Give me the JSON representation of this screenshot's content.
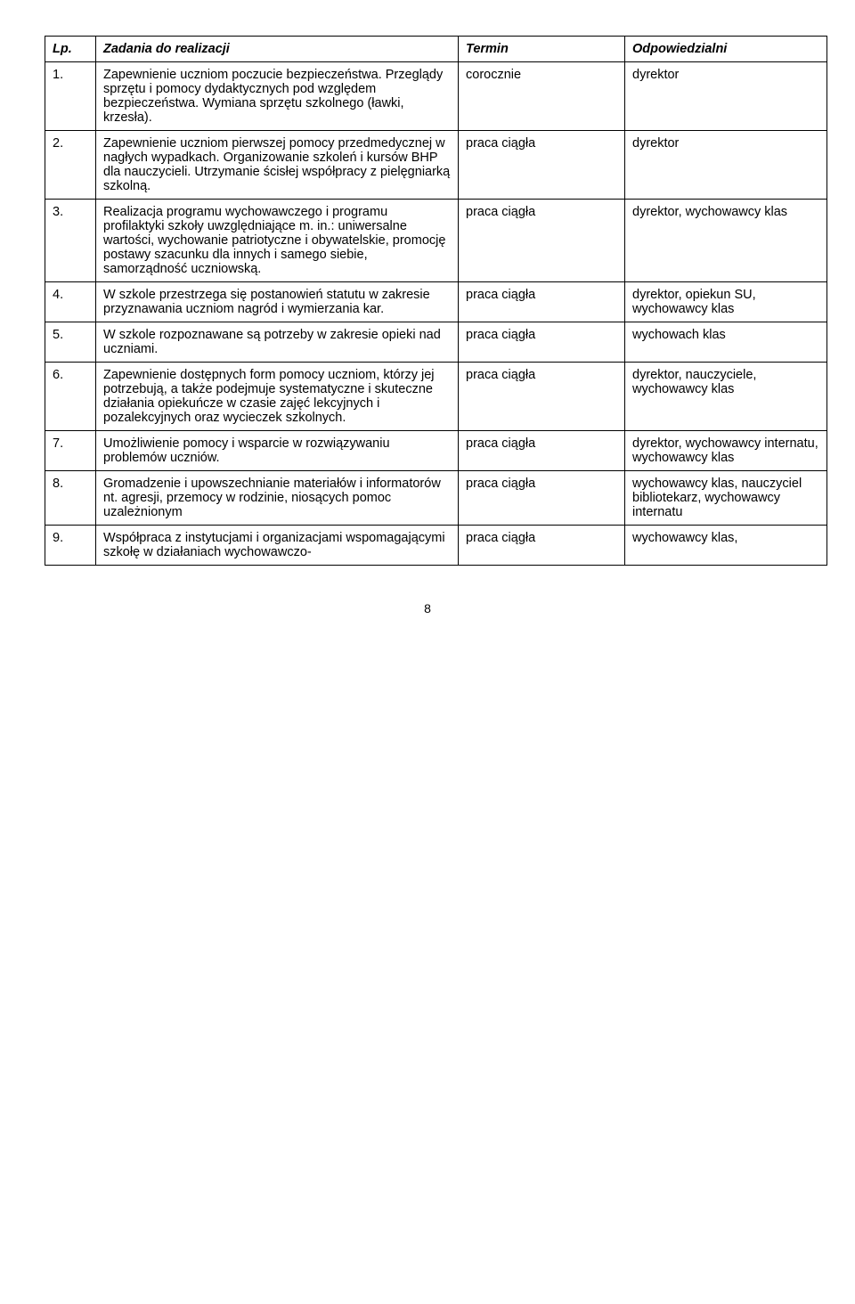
{
  "headers": {
    "lp": "Lp.",
    "task": "Zadania do realizacji",
    "term": "Termin",
    "resp": "Odpowiedzialni"
  },
  "rows": [
    {
      "lp": "1.",
      "task": "Zapewnienie uczniom poczucie bezpieczeństwa. Przeglądy sprzętu i pomocy dydaktycznych pod względem bezpieczeństwa. Wymiana sprzętu szkolnego (ławki, krzesła).",
      "term": "corocznie",
      "resp": "dyrektor"
    },
    {
      "lp": "2.",
      "task": "Zapewnienie uczniom pierwszej pomocy przedmedycznej w nagłych wypadkach. Organizowanie szkoleń i kursów BHP dla nauczycieli. Utrzymanie ścisłej współpracy z pielęgniarką szkolną.",
      "term": "praca ciągła",
      "resp": "dyrektor"
    },
    {
      "lp": "3.",
      "task": "Realizacja programu wychowawczego i programu profilaktyki szkoły uwzględniające m. in.: uniwersalne wartości, wychowanie patriotyczne i obywatelskie, promocję postawy szacunku dla innych i samego siebie, samorządność uczniowską.",
      "term": "praca ciągła",
      "resp": "dyrektor, wychowawcy klas"
    },
    {
      "lp": "4.",
      "task": "W szkole przestrzega się postanowień statutu w zakresie przyznawania uczniom nagród i wymierzania kar.",
      "term": "praca ciągła",
      "resp": "dyrektor, opiekun SU, wychowawcy klas"
    },
    {
      "lp": "5.",
      "task": "W szkole rozpoznawane są potrzeby w zakresie opieki nad uczniami.",
      "term": "praca ciągła",
      "resp": "wychowach klas"
    },
    {
      "lp": "6.",
      "task": "Zapewnienie dostępnych form pomocy uczniom, którzy jej potrzebują, a także podejmuje systematyczne i skuteczne działania opiekuńcze w czasie zajęć lekcyjnych i pozalekcyjnych oraz wycieczek szkolnych.",
      "term": "praca ciągła",
      "resp": "dyrektor, nauczyciele, wychowawcy klas"
    },
    {
      "lp": "7.",
      "task": "Umożliwienie pomocy i wsparcie w rozwiązywaniu problemów uczniów.",
      "term": "praca ciągła",
      "resp": "dyrektor, wychowawcy internatu, wychowawcy klas"
    },
    {
      "lp": "8.",
      "task": "Gromadzenie i upowszechnianie materiałów i informatorów nt. agresji, przemocy w rodzinie, niosących pomoc uzależnionym",
      "term": "praca ciągła",
      "resp": "wychowawcy klas, nauczyciel bibliotekarz, wychowawcy internatu"
    },
    {
      "lp": "9.",
      "task": "Współpraca z instytucjami i organizacjami wspomagającymi szkołę w działaniach wychowawczo-",
      "term": "praca ciągła",
      "resp": "wychowawcy klas,"
    }
  ],
  "page_number": "8"
}
